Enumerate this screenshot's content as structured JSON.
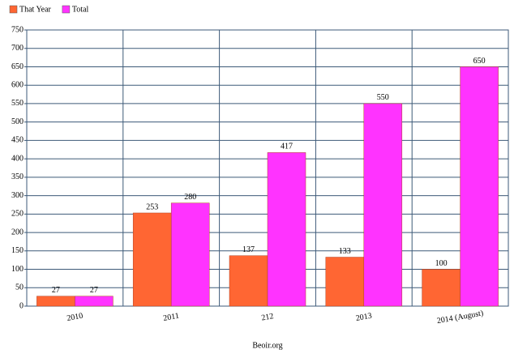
{
  "chart_data": {
    "type": "bar",
    "x_label": "Beoir.org",
    "categories": [
      "2010",
      "2011",
      "212",
      "2013",
      "2014 (August)"
    ],
    "series": [
      {
        "name": "That Year",
        "color": "#ff6633",
        "values": [
          27,
          253,
          137,
          133,
          100
        ]
      },
      {
        "name": "Total",
        "color": "#ff33ff",
        "values": [
          27,
          280,
          417,
          550,
          650
        ]
      }
    ],
    "ylim": [
      0,
      750
    ],
    "yticks": [
      0,
      50,
      100,
      150,
      200,
      250,
      300,
      350,
      400,
      450,
      500,
      550,
      600,
      650,
      700,
      750
    ],
    "grid": true,
    "legend": "top-left"
  }
}
